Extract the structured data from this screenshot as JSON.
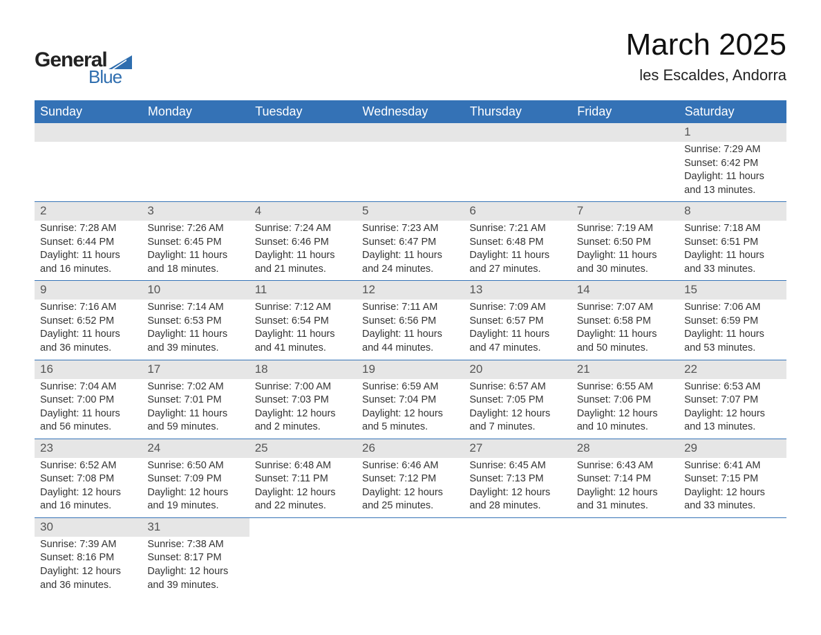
{
  "logo": {
    "general": "General",
    "blue": "Blue"
  },
  "title": "March 2025",
  "location": "les Escaldes, Andorra",
  "colors": {
    "header_bg": "#3472b6",
    "header_text": "#ffffff",
    "daynum_bg": "#e6e6e6",
    "daynum_text": "#555555",
    "body_text": "#333333",
    "border": "#3472b6",
    "logo_blue": "#2f6eaf"
  },
  "day_names": [
    "Sunday",
    "Monday",
    "Tuesday",
    "Wednesday",
    "Thursday",
    "Friday",
    "Saturday"
  ],
  "first_weekday_index": 6,
  "days": [
    {
      "n": 1,
      "sunrise": "7:29 AM",
      "sunset": "6:42 PM",
      "daylight": "11 hours and 13 minutes."
    },
    {
      "n": 2,
      "sunrise": "7:28 AM",
      "sunset": "6:44 PM",
      "daylight": "11 hours and 16 minutes."
    },
    {
      "n": 3,
      "sunrise": "7:26 AM",
      "sunset": "6:45 PM",
      "daylight": "11 hours and 18 minutes."
    },
    {
      "n": 4,
      "sunrise": "7:24 AM",
      "sunset": "6:46 PM",
      "daylight": "11 hours and 21 minutes."
    },
    {
      "n": 5,
      "sunrise": "7:23 AM",
      "sunset": "6:47 PM",
      "daylight": "11 hours and 24 minutes."
    },
    {
      "n": 6,
      "sunrise": "7:21 AM",
      "sunset": "6:48 PM",
      "daylight": "11 hours and 27 minutes."
    },
    {
      "n": 7,
      "sunrise": "7:19 AM",
      "sunset": "6:50 PM",
      "daylight": "11 hours and 30 minutes."
    },
    {
      "n": 8,
      "sunrise": "7:18 AM",
      "sunset": "6:51 PM",
      "daylight": "11 hours and 33 minutes."
    },
    {
      "n": 9,
      "sunrise": "7:16 AM",
      "sunset": "6:52 PM",
      "daylight": "11 hours and 36 minutes."
    },
    {
      "n": 10,
      "sunrise": "7:14 AM",
      "sunset": "6:53 PM",
      "daylight": "11 hours and 39 minutes."
    },
    {
      "n": 11,
      "sunrise": "7:12 AM",
      "sunset": "6:54 PM",
      "daylight": "11 hours and 41 minutes."
    },
    {
      "n": 12,
      "sunrise": "7:11 AM",
      "sunset": "6:56 PM",
      "daylight": "11 hours and 44 minutes."
    },
    {
      "n": 13,
      "sunrise": "7:09 AM",
      "sunset": "6:57 PM",
      "daylight": "11 hours and 47 minutes."
    },
    {
      "n": 14,
      "sunrise": "7:07 AM",
      "sunset": "6:58 PM",
      "daylight": "11 hours and 50 minutes."
    },
    {
      "n": 15,
      "sunrise": "7:06 AM",
      "sunset": "6:59 PM",
      "daylight": "11 hours and 53 minutes."
    },
    {
      "n": 16,
      "sunrise": "7:04 AM",
      "sunset": "7:00 PM",
      "daylight": "11 hours and 56 minutes."
    },
    {
      "n": 17,
      "sunrise": "7:02 AM",
      "sunset": "7:01 PM",
      "daylight": "11 hours and 59 minutes."
    },
    {
      "n": 18,
      "sunrise": "7:00 AM",
      "sunset": "7:03 PM",
      "daylight": "12 hours and 2 minutes."
    },
    {
      "n": 19,
      "sunrise": "6:59 AM",
      "sunset": "7:04 PM",
      "daylight": "12 hours and 5 minutes."
    },
    {
      "n": 20,
      "sunrise": "6:57 AM",
      "sunset": "7:05 PM",
      "daylight": "12 hours and 7 minutes."
    },
    {
      "n": 21,
      "sunrise": "6:55 AM",
      "sunset": "7:06 PM",
      "daylight": "12 hours and 10 minutes."
    },
    {
      "n": 22,
      "sunrise": "6:53 AM",
      "sunset": "7:07 PM",
      "daylight": "12 hours and 13 minutes."
    },
    {
      "n": 23,
      "sunrise": "6:52 AM",
      "sunset": "7:08 PM",
      "daylight": "12 hours and 16 minutes."
    },
    {
      "n": 24,
      "sunrise": "6:50 AM",
      "sunset": "7:09 PM",
      "daylight": "12 hours and 19 minutes."
    },
    {
      "n": 25,
      "sunrise": "6:48 AM",
      "sunset": "7:11 PM",
      "daylight": "12 hours and 22 minutes."
    },
    {
      "n": 26,
      "sunrise": "6:46 AM",
      "sunset": "7:12 PM",
      "daylight": "12 hours and 25 minutes."
    },
    {
      "n": 27,
      "sunrise": "6:45 AM",
      "sunset": "7:13 PM",
      "daylight": "12 hours and 28 minutes."
    },
    {
      "n": 28,
      "sunrise": "6:43 AM",
      "sunset": "7:14 PM",
      "daylight": "12 hours and 31 minutes."
    },
    {
      "n": 29,
      "sunrise": "6:41 AM",
      "sunset": "7:15 PM",
      "daylight": "12 hours and 33 minutes."
    },
    {
      "n": 30,
      "sunrise": "7:39 AM",
      "sunset": "8:16 PM",
      "daylight": "12 hours and 36 minutes."
    },
    {
      "n": 31,
      "sunrise": "7:38 AM",
      "sunset": "8:17 PM",
      "daylight": "12 hours and 39 minutes."
    }
  ],
  "labels": {
    "sunrise_prefix": "Sunrise: ",
    "sunset_prefix": "Sunset: ",
    "daylight_prefix": "Daylight: "
  }
}
